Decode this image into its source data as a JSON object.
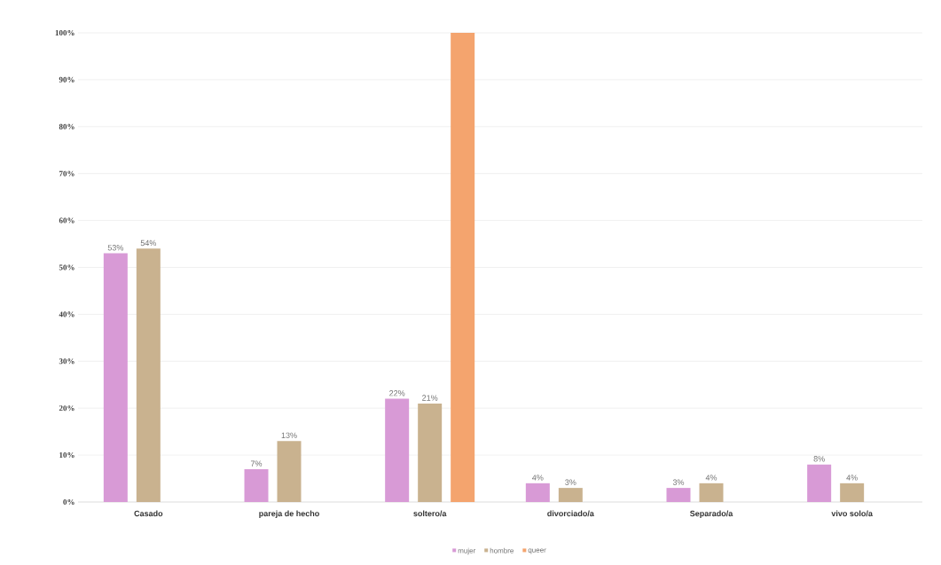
{
  "chart_data": {
    "type": "bar",
    "categories": [
      "Casado",
      "pareja de hecho",
      "soltero/a",
      "divorciado/a",
      "Separado/a",
      "vivo solo/a"
    ],
    "series": [
      {
        "name": "mujer",
        "color": "#d89ad6",
        "values": [
          53,
          7,
          22,
          4,
          3,
          8
        ],
        "value_labels": [
          "53%",
          "7%",
          "22%",
          "4%",
          "3%",
          "8%"
        ]
      },
      {
        "name": "hombre",
        "color": "#c9b28f",
        "values": [
          54,
          13,
          21,
          3,
          4,
          4
        ],
        "value_labels": [
          "54%",
          "13%",
          "21%",
          "3%",
          "4%",
          "4%"
        ]
      },
      {
        "name": "queer",
        "color": "#f4a46e",
        "values": [
          null,
          null,
          100,
          null,
          null,
          null
        ]
      }
    ],
    "ylim": [
      0,
      100
    ],
    "yticks": [
      {
        "value": 0,
        "label": "0%"
      },
      {
        "value": 10,
        "label": "10%"
      },
      {
        "value": 20,
        "label": "20%"
      },
      {
        "value": 30,
        "label": "30%"
      },
      {
        "value": 40,
        "label": "40%"
      },
      {
        "value": 50,
        "label": "50%"
      },
      {
        "value": 60,
        "label": "60%"
      },
      {
        "value": 70,
        "label": "70%"
      },
      {
        "value": 80,
        "label": "80%"
      },
      {
        "value": 90,
        "label": "90%"
      },
      {
        "value": 100,
        "label": "100%"
      }
    ],
    "grid": "y",
    "legend": "bottom"
  }
}
